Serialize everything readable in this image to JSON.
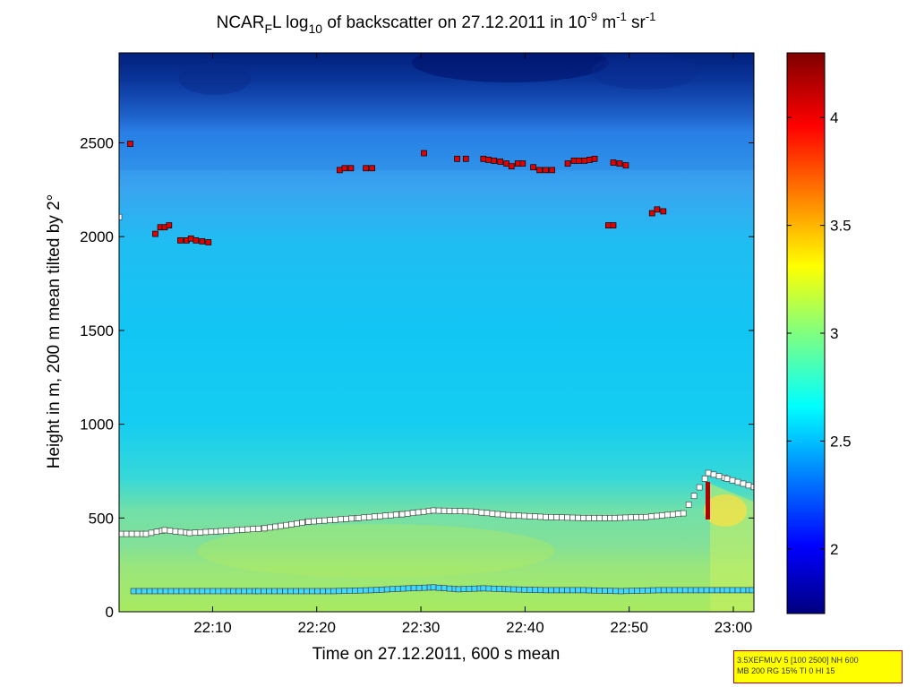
{
  "chart_data": {
    "type": "heatmap",
    "title": {
      "prefix": "NCAR",
      "sub": "F",
      "after_sub": "L log",
      "log_base": "10",
      "middle": " of backscatter on 27.12.2011 in 10",
      "exp1": "-9",
      "unit1": " m",
      "exp2": "-1",
      "unit2": " sr",
      "exp3": "-1"
    },
    "xlabel": "Time on 27.12.2011, 600 s mean",
    "ylabel": "Height in m, 200 m mean tilted by 2°",
    "xlim": [
      22.017,
      23.033
    ],
    "ylim": [
      0,
      2980
    ],
    "x_ticks": [
      {
        "value": 22.1667,
        "label": "22:10"
      },
      {
        "value": 22.3333,
        "label": "22:20"
      },
      {
        "value": 22.5,
        "label": "22:30"
      },
      {
        "value": 22.6667,
        "label": "22:40"
      },
      {
        "value": 22.8333,
        "label": "22:50"
      },
      {
        "value": 23.0,
        "label": "23:00"
      }
    ],
    "y_ticks": [
      0,
      500,
      1000,
      1500,
      2000,
      2500
    ],
    "colorbar": {
      "range": [
        1.7,
        4.3
      ],
      "ticks": [
        {
          "value": 2,
          "label": "2"
        },
        {
          "value": 2.5,
          "label": "2.5"
        },
        {
          "value": 3,
          "label": "3"
        },
        {
          "value": 3.5,
          "label": "3.5"
        },
        {
          "value": 4,
          "label": "4"
        }
      ]
    },
    "cloud_base_markers": {
      "color": "#e00000",
      "points": [
        [
          22.035,
          2495
        ],
        [
          22.075,
          2015
        ],
        [
          22.083,
          2050
        ],
        [
          22.09,
          2050
        ],
        [
          22.097,
          2060
        ],
        [
          22.115,
          1980
        ],
        [
          22.125,
          1980
        ],
        [
          22.132,
          1990
        ],
        [
          22.14,
          1980
        ],
        [
          22.15,
          1975
        ],
        [
          22.16,
          1970
        ],
        [
          22.37,
          2355
        ],
        [
          22.378,
          2365
        ],
        [
          22.388,
          2365
        ],
        [
          22.412,
          2365
        ],
        [
          22.422,
          2365
        ],
        [
          22.505,
          2445
        ],
        [
          22.558,
          2415
        ],
        [
          22.572,
          2415
        ],
        [
          22.6,
          2415
        ],
        [
          22.608,
          2410
        ],
        [
          22.617,
          2405
        ],
        [
          22.627,
          2400
        ],
        [
          22.637,
          2390
        ],
        [
          22.645,
          2375
        ],
        [
          22.655,
          2390
        ],
        [
          22.663,
          2390
        ],
        [
          22.68,
          2370
        ],
        [
          22.69,
          2355
        ],
        [
          22.7,
          2355
        ],
        [
          22.71,
          2355
        ],
        [
          22.735,
          2390
        ],
        [
          22.745,
          2405
        ],
        [
          22.753,
          2405
        ],
        [
          22.762,
          2405
        ],
        [
          22.77,
          2410
        ],
        [
          22.778,
          2415
        ],
        [
          22.8,
          2060
        ],
        [
          22.808,
          2060
        ],
        [
          22.808,
          2395
        ],
        [
          22.818,
          2390
        ],
        [
          22.828,
          2380
        ],
        [
          22.87,
          2125
        ],
        [
          22.878,
          2145
        ],
        [
          22.888,
          2135
        ]
      ]
    },
    "mixing_layer_markers": {
      "color": "#ffffff",
      "points": [
        [
          22.017,
          2105
        ],
        [
          22.02,
          2100
        ],
        [
          22.02,
          415
        ],
        [
          22.06,
          415
        ],
        [
          22.09,
          435
        ],
        [
          22.13,
          420
        ],
        [
          22.18,
          430
        ],
        [
          22.25,
          445
        ],
        [
          22.32,
          480
        ],
        [
          22.4,
          500
        ],
        [
          22.47,
          520
        ],
        [
          22.52,
          540
        ],
        [
          22.58,
          535
        ],
        [
          22.64,
          515
        ],
        [
          22.7,
          505
        ],
        [
          22.76,
          500
        ],
        [
          22.81,
          500
        ],
        [
          22.86,
          505
        ],
        [
          22.92,
          525
        ],
        [
          22.96,
          740
        ],
        [
          22.99,
          710
        ],
        [
          23.033,
          665
        ]
      ]
    },
    "surface_layer_markers": {
      "color": "#40d8ff",
      "points": [
        [
          22.04,
          110
        ],
        [
          22.1,
          110
        ],
        [
          22.15,
          110
        ],
        [
          22.2,
          110
        ],
        [
          22.24,
          110
        ],
        [
          22.3,
          110
        ],
        [
          22.36,
          110
        ],
        [
          22.42,
          115
        ],
        [
          22.48,
          125
        ],
        [
          22.52,
          130
        ],
        [
          22.56,
          120
        ],
        [
          22.6,
          125
        ],
        [
          22.64,
          120
        ],
        [
          22.7,
          115
        ],
        [
          22.76,
          115
        ],
        [
          22.82,
          110
        ],
        [
          22.88,
          115
        ],
        [
          22.94,
          115
        ],
        [
          22.99,
          115
        ],
        [
          23.03,
          115
        ]
      ]
    }
  },
  "info_box": {
    "line1": "3.5XEFMUV 5 [100 2500] NH 600",
    "line2": "MB 200 RG 15% TI 0 HI 15",
    "background": "#ffff00",
    "border": "#c00000"
  }
}
